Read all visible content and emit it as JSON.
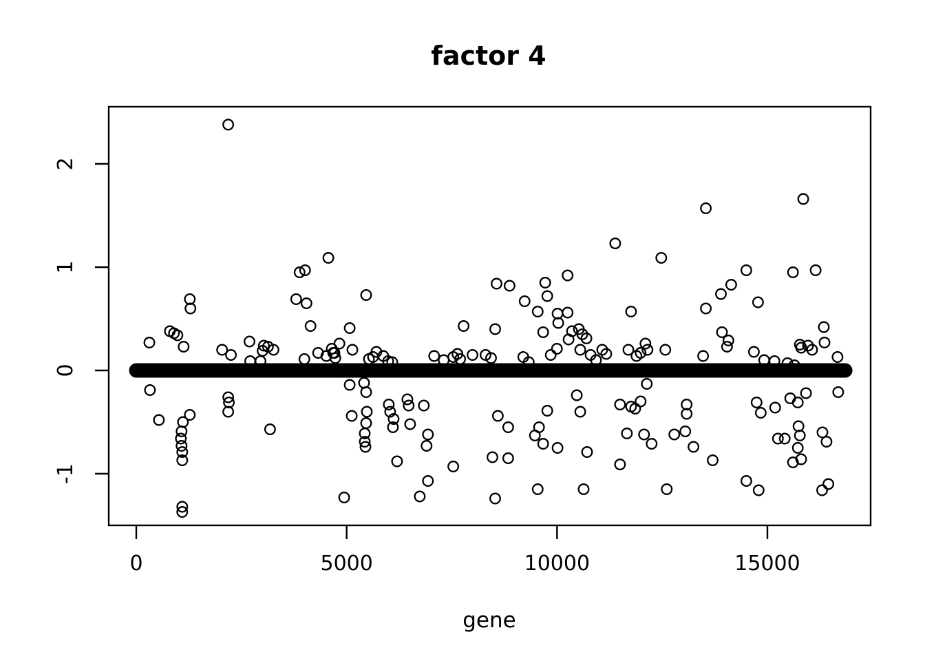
{
  "title": "factor 4",
  "colors": {
    "foreground": "#000000",
    "background": "#ffffff"
  },
  "chart_data": {
    "type": "scatter",
    "title": "factor 4",
    "xlabel": "gene",
    "ylabel": "",
    "marker": "open-circle",
    "grid": false,
    "legend": null,
    "xlim": [
      -650,
      17420
    ],
    "ylim": [
      -1.5,
      2.55
    ],
    "x_ticks": [
      0,
      5000,
      10000,
      15000
    ],
    "y_ticks": [
      -1,
      0,
      1,
      2
    ],
    "zero_band": {
      "value": 0,
      "gene_start": 0,
      "gene_end": 16850,
      "note": "dense band of points at loading 0 rendered as a thick black horizontal line"
    },
    "points": [
      [
        310,
        0.27
      ],
      [
        326,
        -0.19
      ],
      [
        538,
        -0.48
      ],
      [
        799,
        0.38
      ],
      [
        897,
        0.36
      ],
      [
        979,
        0.34
      ],
      [
        1126,
        0.23
      ],
      [
        1272,
        0.69
      ],
      [
        1288,
        0.6
      ],
      [
        1272,
        -0.43
      ],
      [
        1109,
        -0.5
      ],
      [
        1076,
        -0.59
      ],
      [
        1060,
        -0.66
      ],
      [
        1076,
        -0.73
      ],
      [
        1093,
        -0.79
      ],
      [
        1093,
        -0.87
      ],
      [
        1093,
        -1.32
      ],
      [
        1093,
        -1.37
      ],
      [
        2186,
        2.38
      ],
      [
        2039,
        0.2
      ],
      [
        2251,
        0.15
      ],
      [
        2185,
        -0.26
      ],
      [
        2202,
        -0.31
      ],
      [
        2185,
        -0.4
      ],
      [
        2691,
        0.28
      ],
      [
        3033,
        0.24
      ],
      [
        3131,
        0.23
      ],
      [
        3262,
        0.2
      ],
      [
        3001,
        0.19
      ],
      [
        2707,
        0.09
      ],
      [
        2952,
        0.09
      ],
      [
        3180,
        -0.57
      ],
      [
        3882,
        0.95
      ],
      [
        4012,
        0.97
      ],
      [
        4566,
        1.09
      ],
      [
        3800,
        0.69
      ],
      [
        4045,
        0.65
      ],
      [
        4142,
        0.43
      ],
      [
        3996,
        0.11
      ],
      [
        4322,
        0.17
      ],
      [
        4517,
        0.14
      ],
      [
        4648,
        0.21
      ],
      [
        4713,
        0.17
      ],
      [
        4828,
        0.26
      ],
      [
        5072,
        0.41
      ],
      [
        5137,
        0.2
      ],
      [
        4680,
        0.17
      ],
      [
        4730,
        0.12
      ],
      [
        5463,
        0.73
      ],
      [
        5072,
        -0.14
      ],
      [
        5414,
        -0.12
      ],
      [
        5463,
        -0.21
      ],
      [
        5121,
        -0.44
      ],
      [
        5480,
        -0.4
      ],
      [
        5463,
        -0.51
      ],
      [
        5430,
        -0.61
      ],
      [
        5430,
        -0.69
      ],
      [
        5447,
        -0.74
      ],
      [
        4941,
        -1.23
      ],
      [
        5529,
        0.11
      ],
      [
        5627,
        0.13
      ],
      [
        5708,
        0.18
      ],
      [
        5871,
        0.14
      ],
      [
        5987,
        0.09
      ],
      [
        6084,
        0.08
      ],
      [
        7079,
        0.14
      ],
      [
        7307,
        0.1
      ],
      [
        7535,
        0.13
      ],
      [
        7633,
        0.16
      ],
      [
        7698,
        0.11
      ],
      [
        7991,
        0.15
      ],
      [
        7780,
        0.43
      ],
      [
        8302,
        0.15
      ],
      [
        8432,
        0.12
      ],
      [
        8530,
        0.4
      ],
      [
        8563,
        0.84
      ],
      [
        8872,
        0.82
      ],
      [
        6035,
        -0.4
      ],
      [
        6475,
        -0.34
      ],
      [
        6834,
        -0.34
      ],
      [
        6100,
        -0.55
      ],
      [
        6508,
        -0.52
      ],
      [
        6002,
        -0.33
      ],
      [
        6443,
        -0.28
      ],
      [
        6116,
        -0.47
      ],
      [
        6932,
        -0.62
      ],
      [
        6899,
        -0.73
      ],
      [
        6198,
        -0.88
      ],
      [
        7535,
        -0.93
      ],
      [
        8465,
        -0.84
      ],
      [
        6932,
        -1.07
      ],
      [
        6737,
        -1.22
      ],
      [
        8530,
        -1.24
      ],
      [
        8595,
        -0.44
      ],
      [
        9720,
        0.85
      ],
      [
        9769,
        0.72
      ],
      [
        9231,
        0.67
      ],
      [
        9541,
        0.57
      ],
      [
        10013,
        0.55
      ],
      [
        10029,
        0.46
      ],
      [
        10252,
        0.56
      ],
      [
        10252,
        0.92
      ],
      [
        11383,
        1.23
      ],
      [
        9671,
        0.37
      ],
      [
        10274,
        0.3
      ],
      [
        10356,
        0.38
      ],
      [
        10519,
        0.4
      ],
      [
        10601,
        0.35
      ],
      [
        10699,
        0.31
      ],
      [
        10552,
        0.2
      ],
      [
        9198,
        0.13
      ],
      [
        9329,
        0.08
      ],
      [
        9851,
        0.15
      ],
      [
        9998,
        0.21
      ],
      [
        10797,
        0.15
      ],
      [
        10927,
        0.1
      ],
      [
        11074,
        0.2
      ],
      [
        11171,
        0.16
      ],
      [
        11695,
        0.2
      ],
      [
        10470,
        -0.24
      ],
      [
        10552,
        -0.4
      ],
      [
        9769,
        -0.39
      ],
      [
        8840,
        -0.55
      ],
      [
        9573,
        -0.55
      ],
      [
        9475,
        -0.63
      ],
      [
        9671,
        -0.71
      ],
      [
        10013,
        -0.75
      ],
      [
        10715,
        -0.79
      ],
      [
        8840,
        -0.85
      ],
      [
        11498,
        -0.33
      ],
      [
        11760,
        -0.35
      ],
      [
        11661,
        -0.61
      ],
      [
        11498,
        -0.91
      ],
      [
        9541,
        -1.15
      ],
      [
        10633,
        -1.15
      ],
      [
        13537,
        1.57
      ],
      [
        12477,
        1.09
      ],
      [
        14499,
        0.97
      ],
      [
        14140,
        0.83
      ],
      [
        13896,
        0.74
      ],
      [
        13537,
        0.6
      ],
      [
        11760,
        0.57
      ],
      [
        13920,
        0.37
      ],
      [
        14075,
        0.29
      ],
      [
        14042,
        0.23
      ],
      [
        11889,
        0.14
      ],
      [
        11987,
        0.17
      ],
      [
        12101,
        0.26
      ],
      [
        12150,
        0.2
      ],
      [
        12575,
        0.2
      ],
      [
        13472,
        0.14
      ],
      [
        14679,
        0.18
      ],
      [
        12134,
        -0.13
      ],
      [
        11857,
        -0.37
      ],
      [
        11987,
        -0.3
      ],
      [
        13081,
        -0.33
      ],
      [
        13081,
        -0.42
      ],
      [
        12069,
        -0.62
      ],
      [
        12248,
        -0.71
      ],
      [
        12787,
        -0.62
      ],
      [
        13048,
        -0.59
      ],
      [
        13244,
        -0.74
      ],
      [
        13700,
        -0.87
      ],
      [
        14744,
        -0.31
      ],
      [
        14843,
        -0.41
      ],
      [
        14499,
        -1.07
      ],
      [
        12608,
        -1.15
      ],
      [
        14792,
        -1.16
      ],
      [
        15853,
        1.66
      ],
      [
        15608,
        0.95
      ],
      [
        16146,
        0.97
      ],
      [
        14777,
        0.66
      ],
      [
        16341,
        0.42
      ],
      [
        16357,
        0.27
      ],
      [
        15772,
        0.25
      ],
      [
        15967,
        0.24
      ],
      [
        16064,
        0.2
      ],
      [
        15804,
        0.22
      ],
      [
        14924,
        0.1
      ],
      [
        15169,
        0.09
      ],
      [
        15478,
        0.07
      ],
      [
        15641,
        0.05
      ],
      [
        16667,
        0.13
      ],
      [
        15918,
        -0.22
      ],
      [
        16684,
        -0.21
      ],
      [
        15543,
        -0.27
      ],
      [
        15723,
        -0.31
      ],
      [
        15185,
        -0.36
      ],
      [
        15739,
        -0.54
      ],
      [
        15250,
        -0.66
      ],
      [
        15413,
        -0.66
      ],
      [
        15772,
        -0.63
      ],
      [
        15723,
        -0.75
      ],
      [
        15804,
        -0.86
      ],
      [
        15608,
        -0.89
      ],
      [
        16309,
        -0.6
      ],
      [
        16406,
        -0.69
      ],
      [
        16450,
        -1.1
      ],
      [
        16300,
        -1.16
      ]
    ]
  }
}
